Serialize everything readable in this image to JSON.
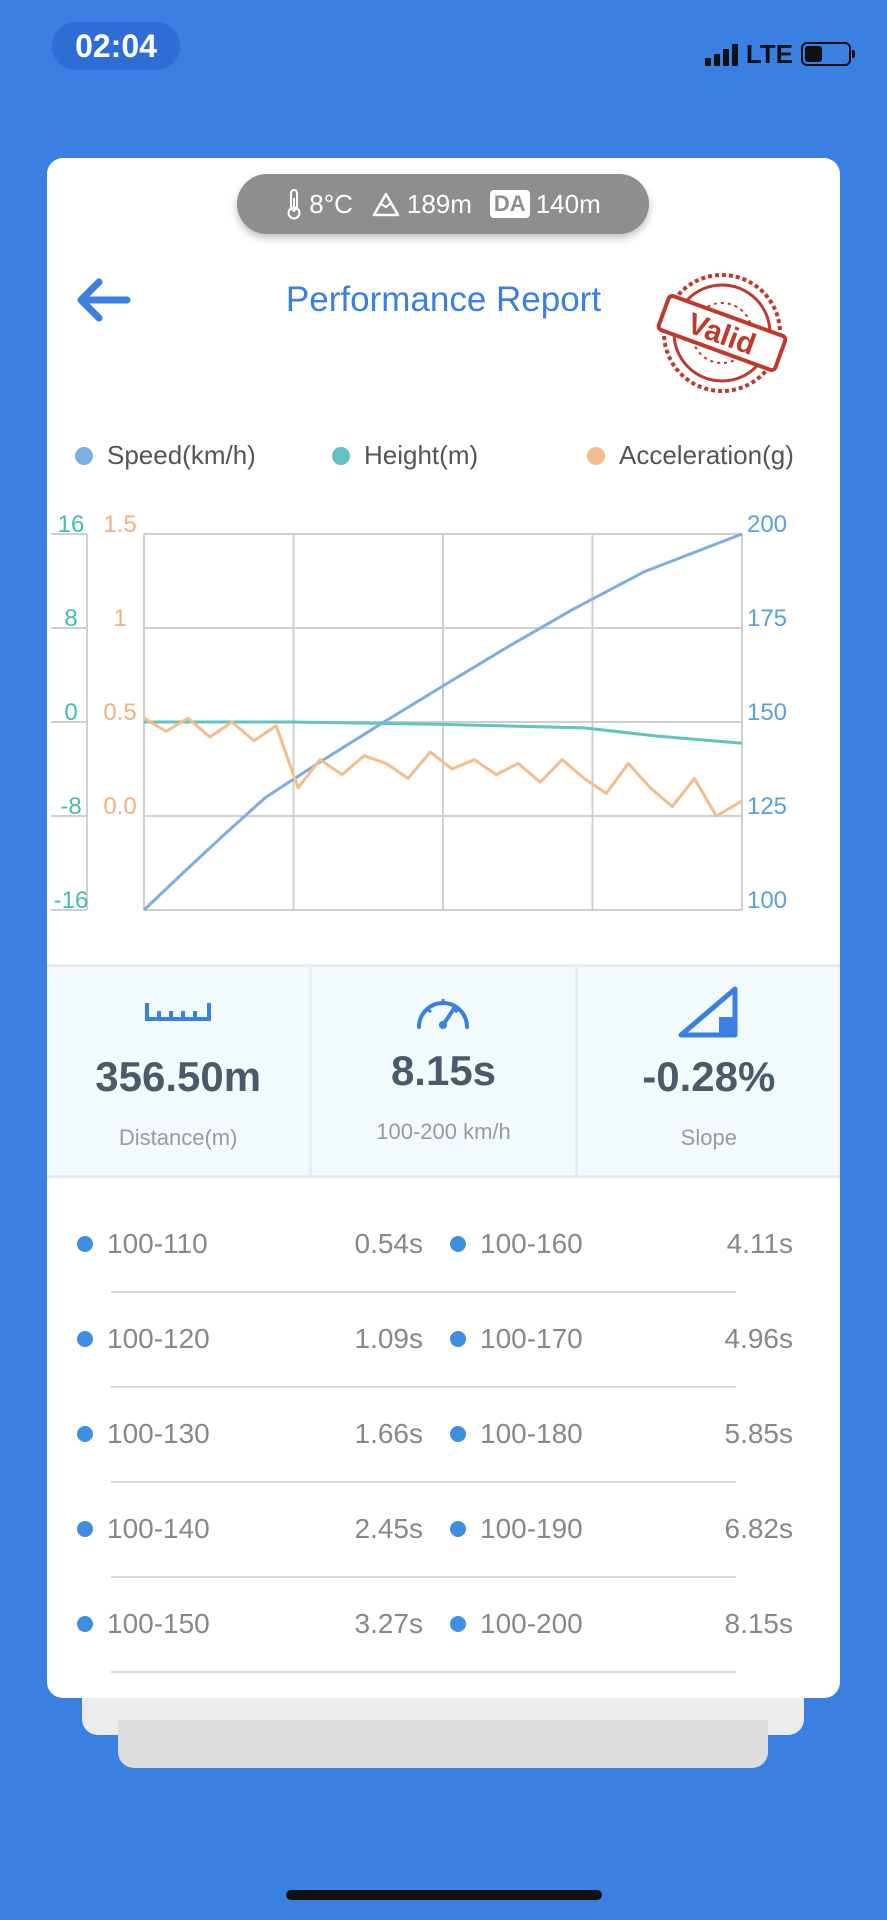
{
  "status": {
    "time": "02:04",
    "network": "LTE"
  },
  "env": {
    "temperature": "8°C",
    "altitude": "189m",
    "da_label": "DA",
    "density_altitude": "140m"
  },
  "header": {
    "title": "Performance Report",
    "stamp_text": "Valid"
  },
  "legend": [
    {
      "label": "Speed(km/h)",
      "color": "#7AAEE5"
    },
    {
      "label": "Height(m)",
      "color": "#62C4C0"
    },
    {
      "label": "Acceleration(g)",
      "color": "#F5BC8C"
    }
  ],
  "chart_data": {
    "type": "line",
    "x_range": [
      0,
      8.15
    ],
    "axes": {
      "height": {
        "ticks": [
          "16",
          "8",
          "0",
          "-8",
          "-16"
        ],
        "range": [
          -16,
          16
        ],
        "color": "#3FBEB6"
      },
      "acceleration": {
        "ticks": [
          "1.5",
          "1",
          "0.5",
          "0.0"
        ],
        "range": [
          -0.5,
          1.5
        ],
        "color": "#F0B080"
      },
      "speed": {
        "ticks": [
          "200",
          "175",
          "150",
          "125",
          "100"
        ],
        "range": [
          100,
          200
        ],
        "color": "#5AA0E0"
      }
    },
    "grid": true,
    "series": [
      {
        "name": "Speed(km/h)",
        "axis": "speed",
        "color": "#7AAEE5",
        "x": [
          0,
          0.54,
          1.09,
          1.66,
          2.45,
          3.27,
          4.11,
          4.96,
          5.85,
          6.82,
          8.15
        ],
        "y": [
          100,
          110,
          120,
          130,
          140,
          150,
          160,
          170,
          180,
          190,
          200
        ]
      },
      {
        "name": "Height(m)",
        "axis": "height",
        "color": "#62C4C0",
        "x": [
          0,
          2,
          4,
          6,
          7,
          8.15
        ],
        "y": [
          0,
          0,
          -0.2,
          -0.5,
          -1.2,
          -1.8
        ]
      },
      {
        "name": "Acceleration(g)",
        "axis": "acceleration",
        "color": "#F5BC8C",
        "x": [
          0,
          0.3,
          0.6,
          0.9,
          1.2,
          1.5,
          1.8,
          2.1,
          2.4,
          2.7,
          3.0,
          3.3,
          3.6,
          3.9,
          4.2,
          4.5,
          4.8,
          5.1,
          5.4,
          5.7,
          6.0,
          6.3,
          6.6,
          6.9,
          7.2,
          7.5,
          7.8,
          8.15
        ],
        "y": [
          0.52,
          0.45,
          0.52,
          0.42,
          0.5,
          0.4,
          0.48,
          0.15,
          0.3,
          0.22,
          0.32,
          0.28,
          0.2,
          0.34,
          0.25,
          0.3,
          0.22,
          0.28,
          0.18,
          0.3,
          0.2,
          0.12,
          0.28,
          0.15,
          0.05,
          0.2,
          0.0,
          0.08
        ]
      }
    ]
  },
  "stats": [
    {
      "icon": "ruler-icon",
      "value": "356.50m",
      "label": "Distance(m)"
    },
    {
      "icon": "speedometer-icon",
      "value": "8.15s",
      "label": "100-200 km/h"
    },
    {
      "icon": "slope-icon",
      "value": "-0.28%",
      "label": "Slope"
    }
  ],
  "splits": [
    {
      "left_label": "100-110",
      "left_time": "0.54s",
      "right_label": "100-160",
      "right_time": "4.11s"
    },
    {
      "left_label": "100-120",
      "left_time": "1.09s",
      "right_label": "100-170",
      "right_time": "4.96s"
    },
    {
      "left_label": "100-130",
      "left_time": "1.66s",
      "right_label": "100-180",
      "right_time": "5.85s"
    },
    {
      "left_label": "100-140",
      "left_time": "2.45s",
      "right_label": "100-190",
      "right_time": "6.82s"
    },
    {
      "left_label": "100-150",
      "left_time": "3.27s",
      "right_label": "100-200",
      "right_time": "8.15s"
    }
  ]
}
